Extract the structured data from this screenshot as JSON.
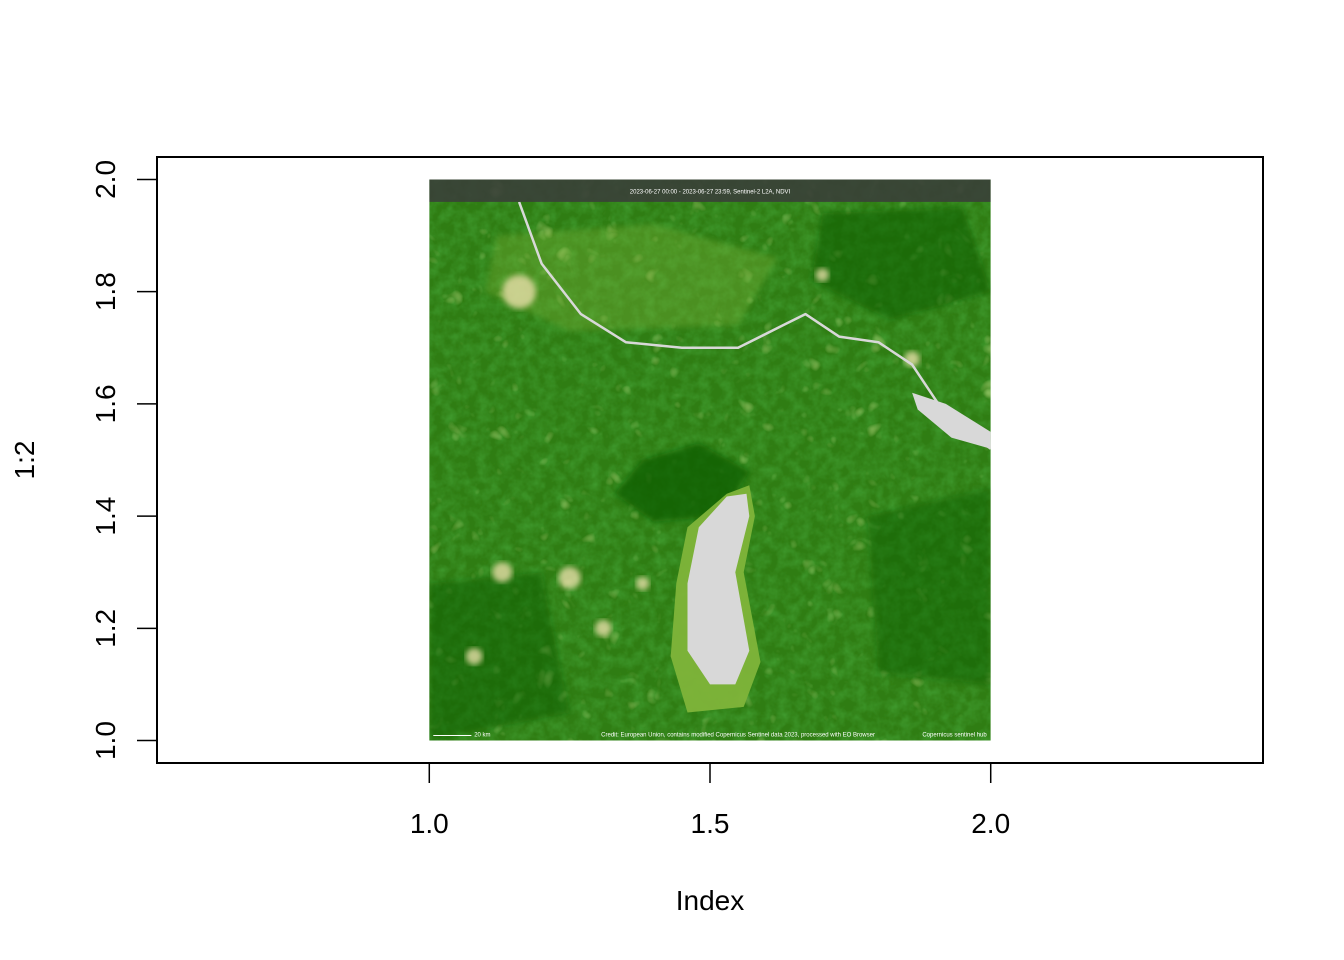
{
  "chart_data": {
    "type": "raster",
    "title": "",
    "xlabel": "Index",
    "ylabel": "1:2",
    "xlim": [
      0.515,
      2.485
    ],
    "ylim": [
      0.96,
      2.04
    ],
    "x_ticks": [
      1.0,
      1.5,
      2.0
    ],
    "x_tick_labels": [
      "1.0",
      "1.5",
      "2.0"
    ],
    "y_ticks": [
      1.0,
      1.2,
      1.4,
      1.6,
      1.8,
      2.0
    ],
    "y_tick_labels": [
      "1.0",
      "1.2",
      "1.4",
      "1.6",
      "1.8",
      "2.0"
    ],
    "image_extent": {
      "x": [
        1.0,
        2.0
      ],
      "y": [
        1.0,
        2.0
      ]
    },
    "image": {
      "description_hidden": true,
      "header_text": "2023-06-27 00:00 - 2023-06-27 23:59, Sentinel-2 L2A, NDVI",
      "scale_text": "20 km",
      "credit_text": "Credit: European Union, contains modified Copernicus Sentinel data 2023, processed with EO Browser",
      "logo_text": "Copernicus  sentinel hub",
      "palette": {
        "water": "#d8d8d8",
        "dense_vegetation": "#0b5d05",
        "medium_vegetation": "#2f7d13",
        "light_vegetation": "#7fb43a",
        "sparse_vegetation": "#b7d57a",
        "bare": "#e8dfa8",
        "header_band": "#3a3f38"
      }
    },
    "grid": false,
    "legend": "none"
  }
}
